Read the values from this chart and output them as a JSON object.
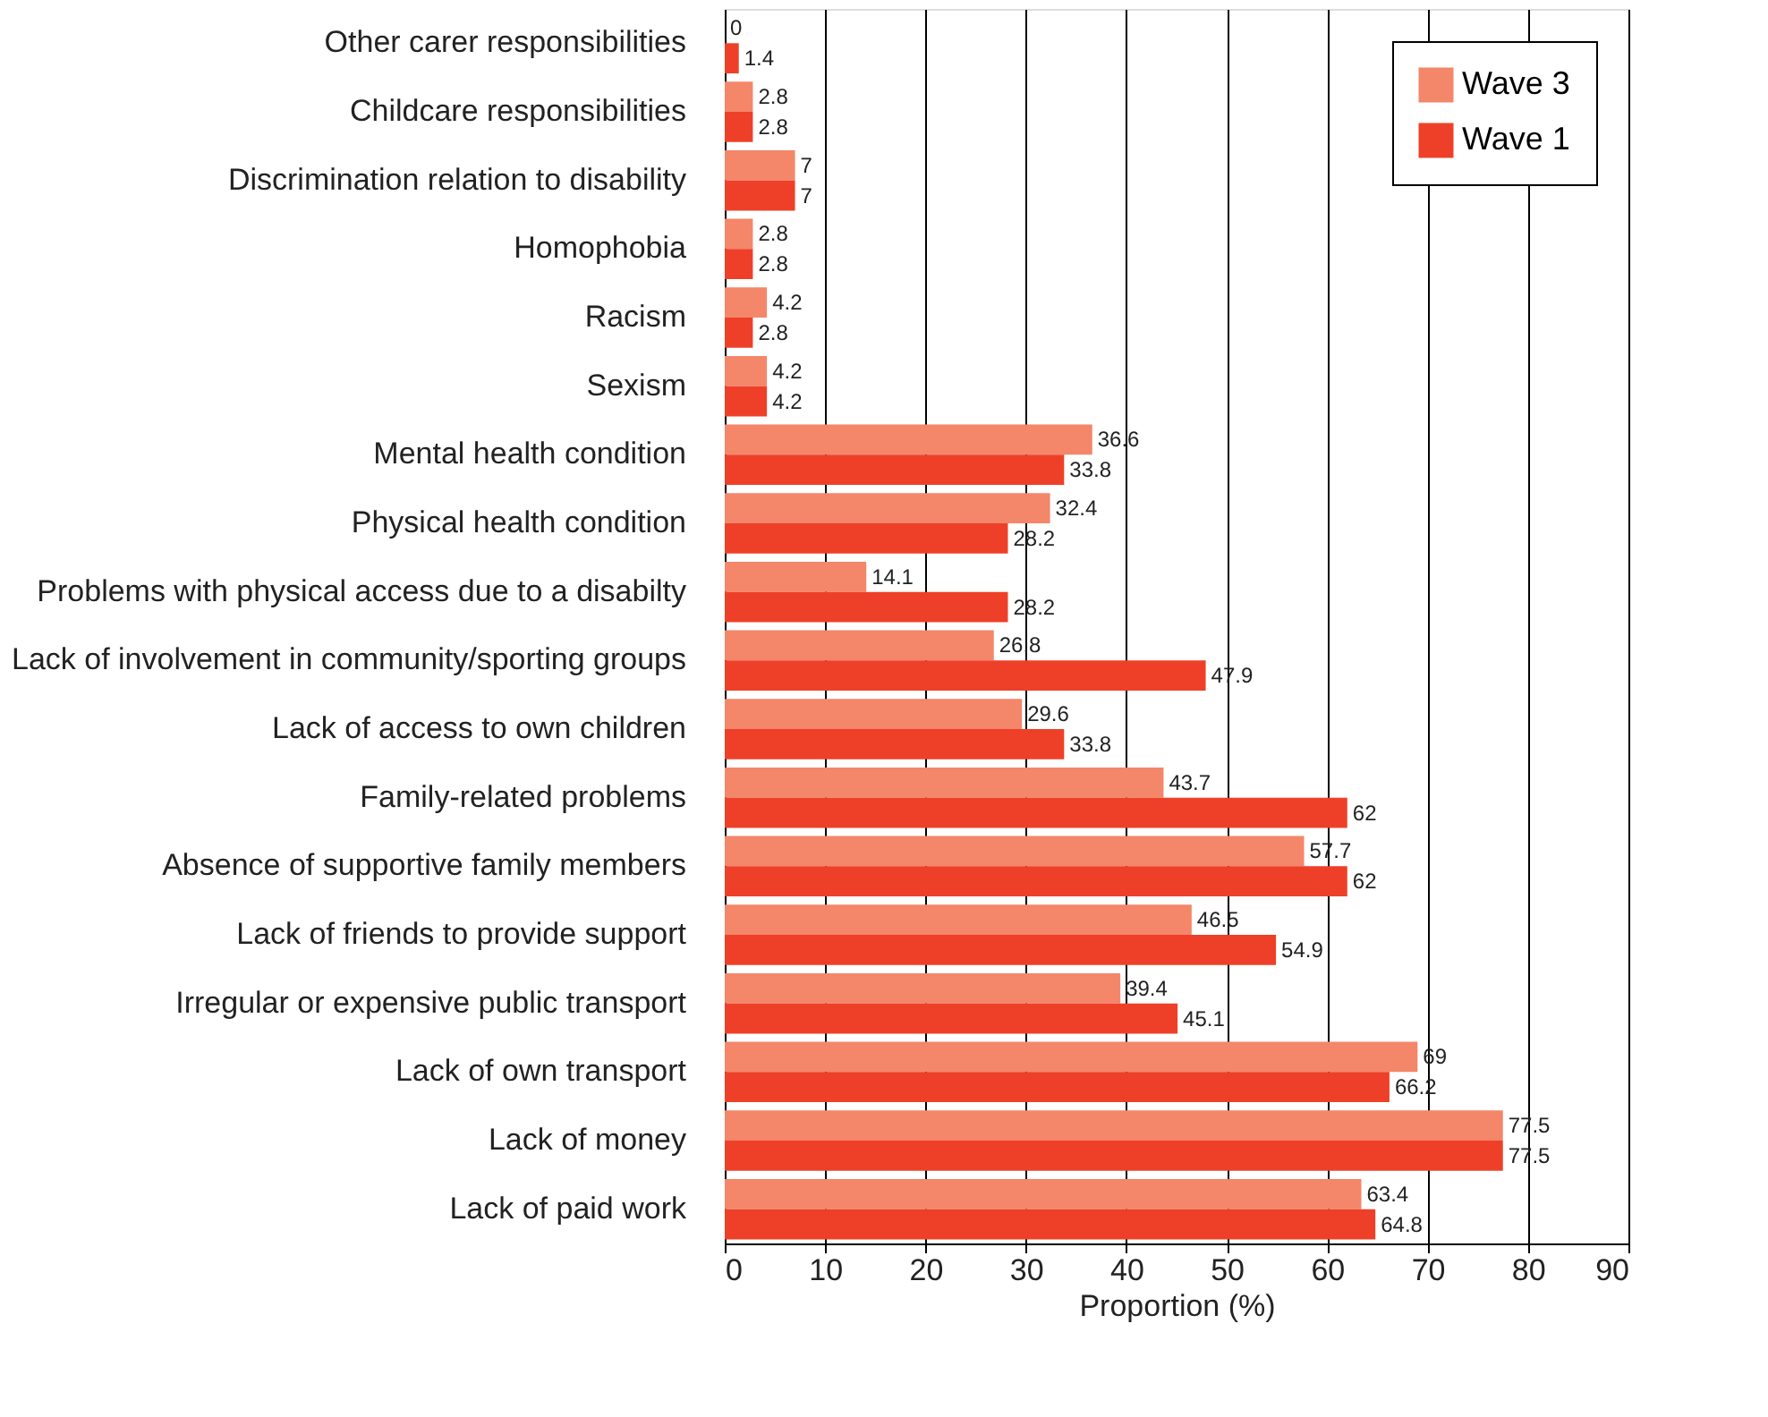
{
  "chart_data": {
    "type": "bar",
    "orientation": "horizontal",
    "xlabel": "Proportion (%)",
    "categories": [
      "Other carer responsibilities",
      "Childcare responsibilities",
      "Discrimination relation to disability",
      "Homophobia",
      "Racism",
      "Sexism",
      "Mental health condition",
      "Physical health condition",
      "Problems with physical access due to a disabilty",
      "Lack of involvement in community/sporting groups",
      "Lack of access to own children",
      "Family-related problems",
      "Absence of supportive family members",
      "Lack of friends to provide support",
      "Irregular or expensive public transport",
      "Lack of own transport",
      "Lack of money",
      "Lack of paid work"
    ],
    "series": [
      {
        "name": "Wave 3",
        "color": "#f4866a",
        "values": [
          0,
          2.8,
          7,
          2.8,
          4.2,
          4.2,
          36.6,
          32.4,
          14.1,
          26.8,
          29.6,
          43.7,
          57.7,
          46.5,
          39.4,
          69,
          77.5,
          63.4
        ]
      },
      {
        "name": "Wave 1",
        "color": "#ee4028",
        "values": [
          1.4,
          2.8,
          7,
          2.8,
          2.8,
          4.2,
          33.8,
          28.2,
          28.2,
          47.9,
          33.8,
          62,
          62,
          54.9,
          45.1,
          66.2,
          77.5,
          64.8
        ]
      }
    ],
    "xlim": [
      0,
      90
    ],
    "xticks": [
      0,
      10,
      20,
      30,
      40,
      50,
      60,
      70,
      80,
      90
    ],
    "grid": "x",
    "legend": "top right",
    "data_labels": true
  }
}
